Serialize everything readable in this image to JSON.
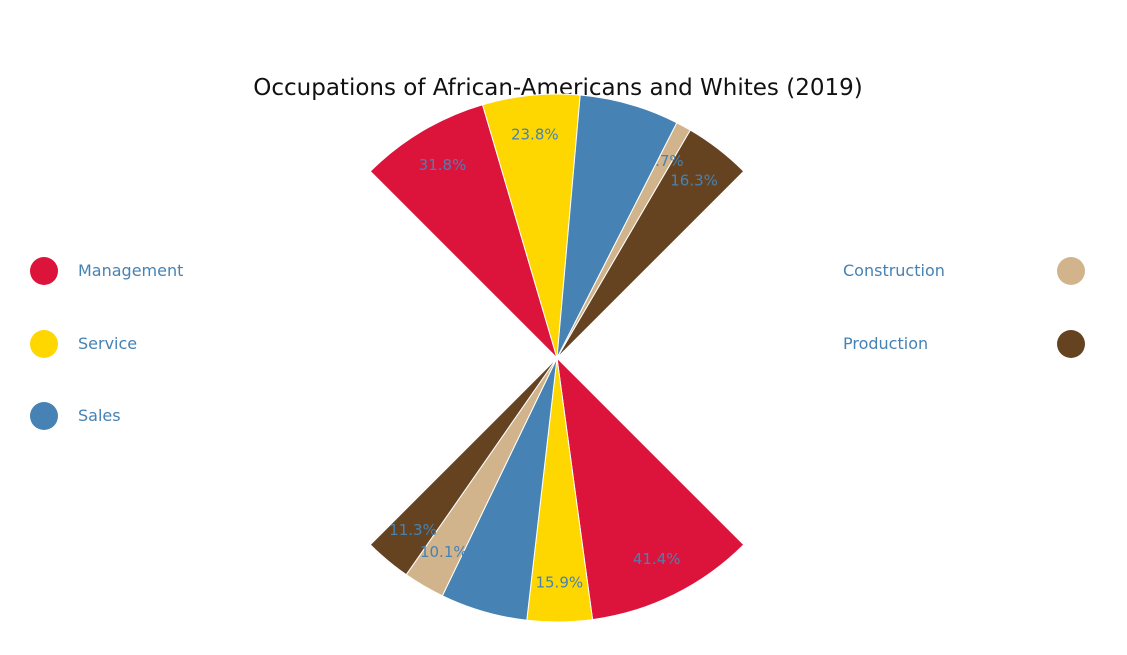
{
  "chart_data": {
    "type": "pie",
    "title": "Occupations of African-Americans and Whites (2019)",
    "categories": [
      "Management",
      "Service",
      "Sales",
      "Construction",
      "Production"
    ],
    "colors": [
      "#dc143c",
      "#ffd700",
      "#4682b4",
      "#d2b48c",
      "#654321"
    ],
    "legend_placement": "left-and-right",
    "series": [
      {
        "values": [
          31.8,
          23.8,
          24.4,
          3.7,
          16.3
        ],
        "labels": [
          "31.8%",
          "23.8%",
          "",
          "3.7%",
          "16.3%"
        ],
        "angle_range_deg": [
          -45,
          45
        ]
      },
      {
        "values": [
          41.4,
          15.9,
          21.3,
          10.1,
          11.3
        ],
        "labels": [
          "41.4%",
          "15.9%",
          "",
          "10.1%",
          "11.3%"
        ],
        "angle_range_deg": [
          135,
          225
        ]
      }
    ]
  }
}
